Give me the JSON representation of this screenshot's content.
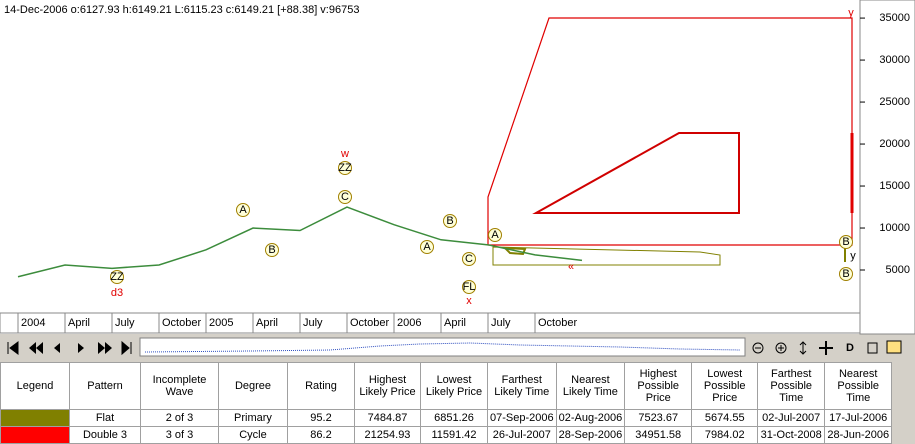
{
  "header": {
    "quote": "14-Dec-2006 o:6127.93 h:6149.21 L:6115.23 c:6149.21 [+88.38] v:96753"
  },
  "chart_data": {
    "type": "line",
    "categories": [
      "2004",
      "April",
      "July",
      "October",
      "2005",
      "April",
      "July",
      "October",
      "2006",
      "April",
      "July",
      "October",
      null
    ],
    "series": [
      {
        "color": "#3c8c3c",
        "values": [
          4200,
          5600,
          5200,
          5600,
          7400,
          10000,
          9700,
          12500,
          10400,
          8600,
          8000,
          6800,
          6149.21
        ]
      }
    ],
    "ylim": [
      0,
      36200
    ],
    "yticks": [
      5000,
      10000,
      15000,
      20000,
      25000,
      30000,
      35000
    ],
    "annotations": [
      "ZZ",
      "d3",
      "A",
      "B",
      "w",
      "ZZ",
      "C",
      "A",
      "B",
      "C",
      "FL",
      "x",
      "A",
      "«",
      "B",
      "y",
      "B",
      "y"
    ]
  },
  "toolbar": {
    "labels": [
      "D"
    ]
  },
  "table": {
    "columns": [
      "Legend",
      "Pattern",
      "Incomplete Wave",
      "Degree",
      "Rating",
      "Highest Likely Price",
      "Lowest Likely Price",
      "Farthest Likely Time",
      "Nearest Likely Time",
      "Highest Possible Price",
      "Lowest Possible Price",
      "Farthest Possible Time",
      "Nearest Possible Time"
    ],
    "legend_colors": [
      "#808000",
      "#ff0000"
    ],
    "rows": [
      [
        "Flat",
        "2 of 3",
        "Primary",
        "95.2",
        "7484.87",
        "6851.26",
        "07-Sep-2006",
        "02-Aug-2006",
        "7523.67",
        "5674.55",
        "02-Jul-2007",
        "17-Jul-2006"
      ],
      [
        "Double 3",
        "3 of 3",
        "Cycle",
        "86.2",
        "21254.93",
        "11591.42",
        "26-Jul-2007",
        "28-Sep-2006",
        "34951.58",
        "7984.02",
        "31-Oct-2008",
        "28-Jun-2006"
      ]
    ]
  }
}
